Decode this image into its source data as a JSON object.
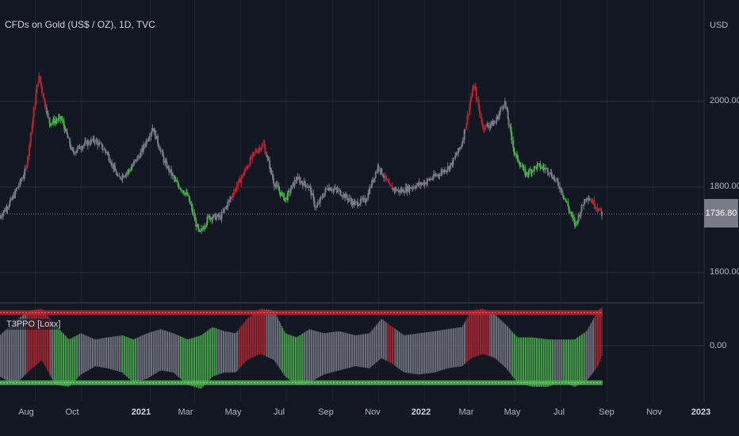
{
  "header": {
    "title": "CFDs on Gold (US$ / OZ), 1D, TVC",
    "currency": "USD",
    "last_price": "1736.80"
  },
  "indicator": {
    "label": "T3PPO [Loxx]",
    "zero_label": "0.00"
  },
  "price_axis": {
    "labels": [
      "2000.00",
      "1800.00",
      "1600.00"
    ]
  },
  "time_axis": {
    "labels": [
      "Aug",
      "Oct",
      "2021",
      "Mar",
      "May",
      "Jul",
      "Sep",
      "Nov",
      "2022",
      "Mar",
      "May",
      "Jul",
      "Sep",
      "Nov",
      "2023"
    ]
  },
  "colors": {
    "background": "#131722",
    "bull": "#4caf50",
    "bear": "#b22833",
    "neutral": "#787b86",
    "grid": "#2a2e39"
  },
  "chart_data": [
    {
      "type": "candlestick",
      "title": "CFDs on Gold (US$ / OZ), 1D, TVC",
      "ylabel": "USD",
      "ylim": [
        1525,
        2085
      ],
      "ticks": [
        1600,
        1800,
        2000
      ],
      "last_value": 1736.8,
      "x": [
        "2020-06-15",
        "2020-07-01",
        "2020-07-20",
        "2020-08-06",
        "2020-08-20",
        "2020-09-05",
        "2020-09-20",
        "2020-10-05",
        "2020-10-20",
        "2020-11-05",
        "2020-11-20",
        "2020-12-05",
        "2020-12-20",
        "2021-01-05",
        "2021-01-20",
        "2021-02-05",
        "2021-02-20",
        "2021-03-08",
        "2021-03-20",
        "2021-04-05",
        "2021-04-20",
        "2021-05-05",
        "2021-05-20",
        "2021-06-01",
        "2021-06-15",
        "2021-06-30",
        "2021-07-15",
        "2021-08-01",
        "2021-08-10",
        "2021-08-25",
        "2021-09-10",
        "2021-09-30",
        "2021-10-15",
        "2021-11-01",
        "2021-11-16",
        "2021-11-30",
        "2021-12-15",
        "2022-01-01",
        "2022-01-20",
        "2022-02-05",
        "2022-02-20",
        "2022-03-08",
        "2022-03-20",
        "2022-04-05",
        "2022-04-18",
        "2022-05-01",
        "2022-05-16",
        "2022-06-01",
        "2022-06-15",
        "2022-07-01",
        "2022-07-21",
        "2022-08-05",
        "2022-08-16",
        "2022-08-26"
      ],
      "values": [
        1730,
        1770,
        1840,
        2060,
        1950,
        1960,
        1880,
        1900,
        1910,
        1880,
        1820,
        1840,
        1880,
        1940,
        1860,
        1810,
        1780,
        1690,
        1730,
        1730,
        1780,
        1830,
        1880,
        1900,
        1810,
        1770,
        1820,
        1800,
        1750,
        1800,
        1790,
        1760,
        1770,
        1850,
        1800,
        1790,
        1800,
        1810,
        1830,
        1850,
        1900,
        2040,
        1940,
        1950,
        2000,
        1880,
        1830,
        1850,
        1840,
        1800,
        1710,
        1780,
        1760,
        1737
      ],
      "segment_colors": {
        "bull": [
          [
            "2020-08-20",
            "2020-09-10"
          ],
          [
            "2020-12-01",
            "2020-12-10"
          ],
          [
            "2021-02-01",
            "2021-03-25"
          ],
          [
            "2021-06-20",
            "2021-07-05"
          ],
          [
            "2022-04-25",
            "2022-06-10"
          ],
          [
            "2022-07-05",
            "2022-07-25"
          ]
        ],
        "bear": [
          [
            "2020-07-20",
            "2020-08-15"
          ],
          [
            "2021-04-20",
            "2021-06-05"
          ],
          [
            "2021-11-10",
            "2021-11-20"
          ],
          [
            "2022-02-25",
            "2022-03-25"
          ],
          [
            "2022-08-10",
            "2022-08-25"
          ]
        ]
      }
    },
    {
      "type": "area",
      "title": "T3PPO [Loxx]",
      "ylim": [
        -1.2,
        1.1
      ],
      "ticks": [
        0
      ],
      "x": [
        "2020-06-15",
        "2020-07-05",
        "2020-07-25",
        "2020-08-10",
        "2020-08-28",
        "2020-09-15",
        "2020-10-01",
        "2020-10-20",
        "2020-11-05",
        "2020-11-25",
        "2020-12-10",
        "2020-12-28",
        "2021-01-15",
        "2021-02-01",
        "2021-02-20",
        "2021-03-10",
        "2021-03-25",
        "2021-04-10",
        "2021-04-25",
        "2021-05-10",
        "2021-05-28",
        "2021-06-15",
        "2021-06-30",
        "2021-07-15",
        "2021-08-01",
        "2021-08-20",
        "2021-09-10",
        "2021-10-01",
        "2021-10-20",
        "2021-11-05",
        "2021-11-20",
        "2021-12-05",
        "2021-12-25",
        "2022-01-15",
        "2022-02-01",
        "2022-02-20",
        "2022-03-05",
        "2022-03-20",
        "2022-04-05",
        "2022-04-20",
        "2022-05-05",
        "2022-05-25",
        "2022-06-15",
        "2022-07-01",
        "2022-07-20",
        "2022-08-05",
        "2022-08-20",
        "2022-08-26"
      ],
      "series": [
        {
          "values": [
            0.25,
            0.6,
            0.85,
            0.9,
            0.5,
            0.15,
            0.3,
            0.15,
            0.2,
            0.25,
            0.15,
            0.3,
            0.4,
            0.3,
            0.15,
            0.25,
            0.45,
            0.35,
            0.3,
            0.65,
            0.9,
            0.85,
            0.3,
            0.2,
            0.4,
            0.3,
            0.35,
            0.25,
            0.3,
            0.65,
            0.45,
            0.25,
            0.3,
            0.35,
            0.4,
            0.45,
            0.85,
            0.9,
            0.75,
            0.5,
            0.2,
            0.2,
            0.15,
            0.15,
            0.15,
            0.35,
            0.85,
            0.95
          ]
        },
        {
          "values": [
            -0.75,
            -0.95,
            -0.6,
            -0.35,
            -0.95,
            -1.0,
            -0.7,
            -0.5,
            -0.55,
            -0.65,
            -0.9,
            -0.8,
            -0.6,
            -0.65,
            -0.95,
            -1.05,
            -0.75,
            -0.65,
            -0.65,
            -0.35,
            -0.2,
            -0.35,
            -0.75,
            -0.95,
            -0.9,
            -0.7,
            -0.6,
            -0.5,
            -0.55,
            -0.3,
            -0.45,
            -0.65,
            -0.7,
            -0.65,
            -0.55,
            -0.5,
            -0.3,
            -0.2,
            -0.3,
            -0.55,
            -0.9,
            -1.0,
            -1.0,
            -0.85,
            -1.0,
            -0.85,
            -0.5,
            -0.2
          ]
        }
      ],
      "segment_colors": {
        "bull": [
          [
            "2020-08-25",
            "2020-09-25"
          ],
          [
            "2020-11-25",
            "2020-12-12"
          ],
          [
            "2021-02-10",
            "2021-03-30"
          ],
          [
            "2021-06-25",
            "2021-07-25"
          ],
          [
            "2022-04-28",
            "2022-06-20"
          ],
          [
            "2022-07-05",
            "2022-08-01"
          ]
        ],
        "bear": [
          [
            "2020-07-20",
            "2020-08-20"
          ],
          [
            "2021-04-28",
            "2021-06-05"
          ],
          [
            "2021-11-12",
            "2021-11-22"
          ],
          [
            "2022-02-25",
            "2022-03-28"
          ],
          [
            "2022-08-15",
            "2022-08-26"
          ]
        ]
      },
      "levels": {
        "upper": 0.8,
        "lower": -0.9
      }
    }
  ]
}
